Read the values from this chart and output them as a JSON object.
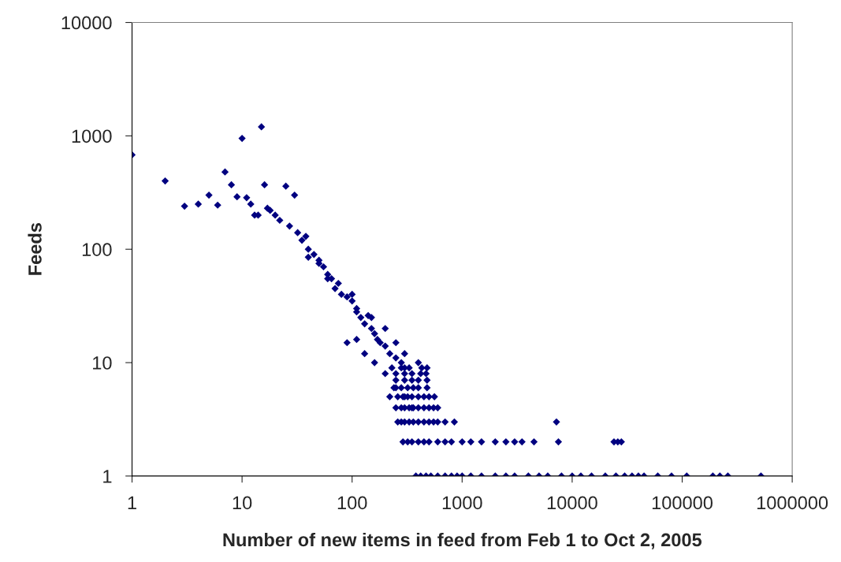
{
  "chart_data": {
    "type": "scatter",
    "xlabel": "Number of new items in feed from Feb 1 to Oct 2, 2005",
    "ylabel": "Feeds",
    "log": "xy",
    "xlim": [
      1,
      1000000
    ],
    "ylim": [
      1,
      10000
    ],
    "xticks": [
      1,
      10,
      100,
      1000,
      10000,
      100000,
      1000000
    ],
    "yticks": [
      1,
      10,
      100,
      1000,
      10000
    ],
    "grid": false,
    "legend": false,
    "marker": "diamond",
    "series": [
      {
        "color": "#000080",
        "x": [
          1,
          2,
          3,
          4,
          5,
          6,
          7,
          8,
          9,
          10,
          11,
          12,
          13,
          14,
          15,
          16,
          17,
          18,
          20,
          22,
          25,
          27,
          30,
          32,
          35,
          38,
          40,
          45,
          50,
          55,
          60,
          65,
          70,
          75,
          80,
          90,
          100,
          110,
          120,
          130,
          140,
          150,
          160,
          170,
          180,
          200,
          220,
          250,
          280,
          300,
          40,
          50,
          60,
          100,
          110,
          150,
          200,
          250,
          300,
          400,
          480,
          90,
          110,
          130,
          160,
          200,
          250,
          300,
          350,
          380,
          420,
          470,
          520,
          600,
          700,
          800,
          900,
          1000,
          1200,
          1500,
          2000,
          2500,
          3000,
          4000,
          5000,
          6000,
          8000,
          10000,
          12000,
          15000,
          20000,
          25000,
          30000,
          35000,
          40000,
          45000,
          60000,
          80000,
          110000,
          190000,
          220000,
          260000,
          520000,
          290,
          320,
          350,
          400,
          450,
          500,
          600,
          700,
          800,
          1000,
          1200,
          1500,
          2000,
          2500,
          3000,
          3500,
          4500,
          7500,
          24000,
          26000,
          28000,
          260,
          280,
          300,
          330,
          360,
          400,
          450,
          500,
          550,
          600,
          700,
          850,
          7200,
          250,
          280,
          300,
          330,
          360,
          400,
          450,
          500,
          550,
          600,
          220,
          260,
          290,
          320,
          350,
          400,
          450,
          500,
          560,
          240,
          280,
          320,
          360,
          400,
          480,
          250,
          300,
          350,
          400,
          480,
          250,
          300,
          350,
          420,
          470,
          230,
          280,
          330,
          430
        ],
        "values": [
          680,
          400,
          240,
          250,
          300,
          245,
          480,
          370,
          290,
          950,
          285,
          250,
          200,
          200,
          1200,
          370,
          230,
          220,
          200,
          180,
          360,
          160,
          300,
          140,
          120,
          130,
          100,
          90,
          80,
          70,
          60,
          55,
          45,
          50,
          40,
          38,
          35,
          28,
          25,
          22,
          26,
          20,
          18,
          16,
          15,
          14,
          12,
          11,
          10,
          9,
          85,
          75,
          55,
          40,
          30,
          25,
          20,
          15,
          12,
          10,
          9,
          15,
          16,
          12,
          10,
          8,
          6,
          5,
          4,
          1,
          1,
          1,
          1,
          1,
          1,
          1,
          1,
          1,
          1,
          1,
          1,
          1,
          1,
          1,
          1,
          1,
          1,
          1,
          1,
          1,
          1,
          1,
          1,
          1,
          1,
          1,
          1,
          1,
          1,
          1,
          1,
          1,
          1,
          2,
          2,
          2,
          2,
          2,
          2,
          2,
          2,
          2,
          2,
          2,
          2,
          2,
          2,
          2,
          2,
          2,
          2,
          2,
          2,
          2,
          3,
          3,
          3,
          3,
          3,
          3,
          3,
          3,
          3,
          3,
          3,
          3,
          3,
          4,
          4,
          4,
          4,
          4,
          4,
          4,
          4,
          4,
          4,
          5,
          5,
          5,
          5,
          5,
          5,
          5,
          5,
          5,
          6,
          6,
          6,
          6,
          6,
          6,
          7,
          7,
          7,
          7,
          7,
          8,
          8,
          8,
          8,
          8,
          9,
          9,
          9,
          9
        ]
      }
    ]
  }
}
